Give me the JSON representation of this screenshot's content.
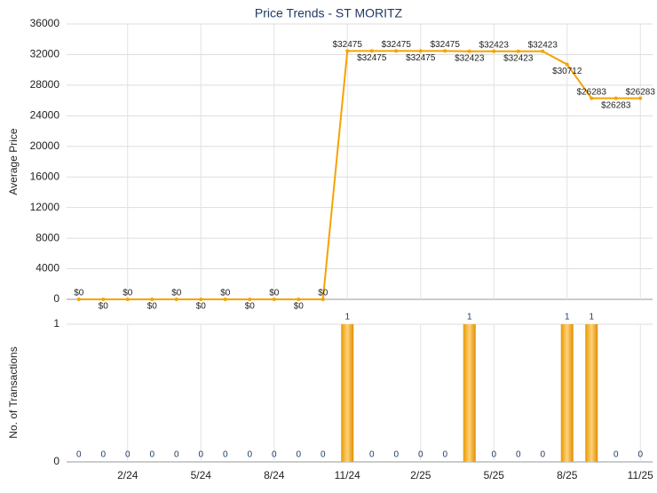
{
  "chart_data": [
    {
      "type": "line",
      "title": "Price Trends - ST MORITZ",
      "y_label": "Average Price",
      "color": "#f5a300",
      "values": [
        0,
        0,
        0,
        0,
        0,
        0,
        0,
        0,
        0,
        0,
        0,
        32475,
        32475,
        32475,
        32475,
        32475,
        32423,
        32423,
        32423,
        32423,
        30712,
        26283,
        26283,
        26283
      ],
      "value_labels": [
        "$0",
        "$0",
        "$0",
        "$0",
        "$0",
        "$0",
        "$0",
        "$0",
        "$0",
        "$0",
        "$0",
        "$32475",
        "$32475",
        "$32475",
        "$32475",
        "$32475",
        "$32423",
        "$32423",
        "$32423",
        "$32423",
        "$30712",
        "$26283",
        "$26283",
        "$26283"
      ],
      "ylim": [
        0,
        36000
      ],
      "yticks": [
        0,
        4000,
        8000,
        12000,
        16000,
        20000,
        24000,
        28000,
        32000,
        36000
      ],
      "grid": true
    },
    {
      "type": "bar",
      "y_label": "No. of Transactions",
      "color": "#f0a000",
      "categories": [
        null,
        null,
        "2/24",
        null,
        null,
        "5/24",
        null,
        null,
        "8/24",
        null,
        null,
        "11/24",
        null,
        null,
        "2/25",
        null,
        null,
        "5/25",
        null,
        null,
        "8/25",
        null,
        null,
        "11/25"
      ],
      "values": [
        0,
        0,
        0,
        0,
        0,
        0,
        0,
        0,
        0,
        0,
        0,
        1,
        0,
        0,
        0,
        0,
        1,
        0,
        0,
        0,
        1,
        1,
        0,
        0
      ],
      "ylim": [
        0,
        1
      ],
      "yticks": [
        0,
        1
      ],
      "grid": true
    }
  ]
}
